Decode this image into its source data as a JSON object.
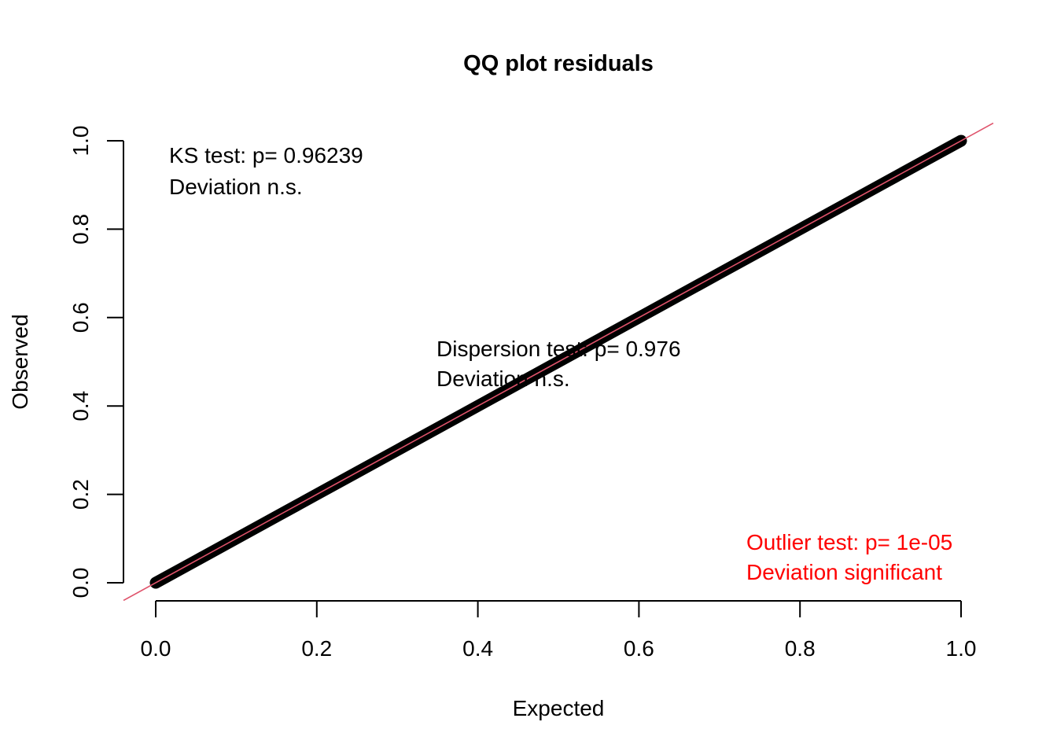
{
  "chart_data": {
    "type": "scatter",
    "title": "QQ plot residuals",
    "xlabel": "Expected",
    "ylabel": "Observed",
    "xlim": [
      0,
      1
    ],
    "ylim": [
      0,
      1
    ],
    "xticks": [
      0.0,
      0.2,
      0.4,
      0.6,
      0.8,
      1.0
    ],
    "yticks": [
      0.0,
      0.2,
      0.4,
      0.6,
      0.8,
      1.0
    ],
    "xtick_labels": [
      "0.0",
      "0.2",
      "0.4",
      "0.6",
      "0.8",
      "1.0"
    ],
    "ytick_labels": [
      "0.0",
      "0.2",
      "0.4",
      "0.6",
      "0.8",
      "1.0"
    ],
    "points": {
      "x": [
        0.0,
        0.05,
        0.1,
        0.15,
        0.2,
        0.25,
        0.3,
        0.35,
        0.4,
        0.45,
        0.5,
        0.55,
        0.6,
        0.65,
        0.7,
        0.75,
        0.8,
        0.85,
        0.9,
        0.95,
        1.0
      ],
      "y": [
        0.0,
        0.05,
        0.1,
        0.15,
        0.2,
        0.25,
        0.3,
        0.35,
        0.4,
        0.45,
        0.5,
        0.55,
        0.6,
        0.65,
        0.7,
        0.75,
        0.8,
        0.85,
        0.9,
        0.95,
        1.0
      ]
    },
    "point_color": "#000000",
    "reference_line": {
      "slope": 1,
      "intercept": 0,
      "color": "#df536b"
    },
    "annotations": {
      "ks": [
        "KS test: p= 0.96239",
        "Deviation  n.s."
      ],
      "dispersion": [
        "Dispersion test: p= 0.976",
        "Deviation  n.s."
      ],
      "outlier": [
        "Outlier test: p= 1e-05",
        "Deviation  significant"
      ],
      "outlier_color": "#ff0000"
    }
  }
}
